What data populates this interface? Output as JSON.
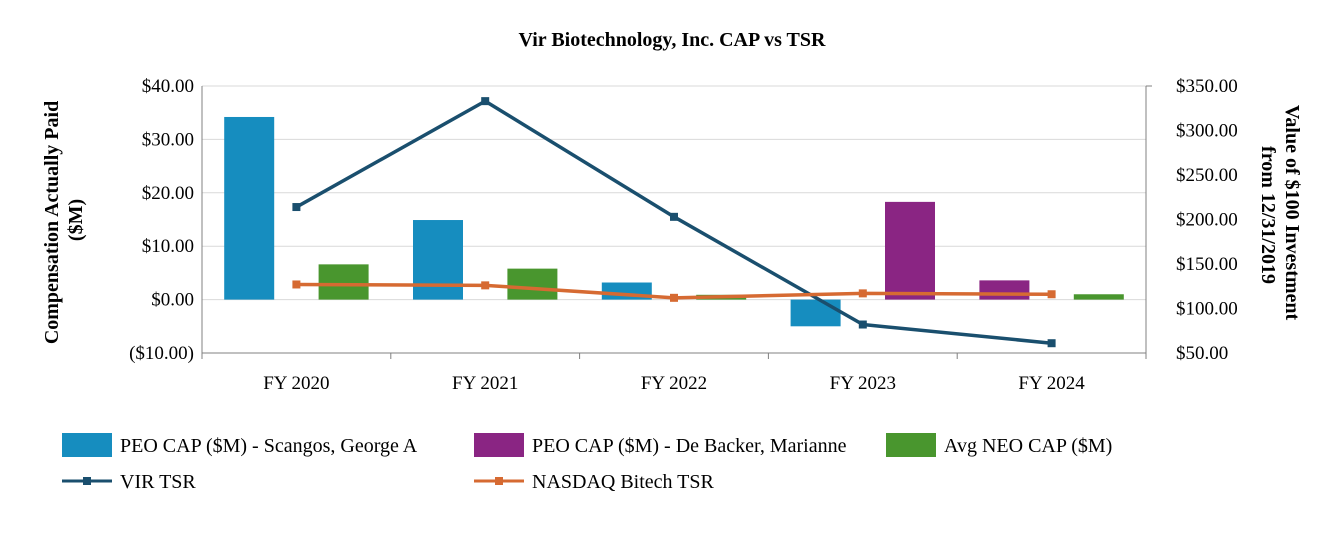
{
  "chart_data": {
    "type": "bar",
    "title": "Vir Biotechnology, Inc. CAP vs TSR",
    "categories": [
      "FY 2020",
      "FY 2021",
      "FY 2022",
      "FY 2023",
      "FY 2024"
    ],
    "y_left": {
      "label_line1": "Compensation Actually Paid",
      "label_line2": "($M)",
      "range": [
        -10,
        40
      ],
      "ticks": [
        -10,
        0,
        10,
        20,
        30,
        40
      ],
      "tick_labels": [
        "($10.00)",
        "$0.00",
        "$10.00",
        "$20.00",
        "$30.00",
        "$40.00"
      ]
    },
    "y_right": {
      "label_line1": "Value of $100 Investment",
      "label_line2": "from 12/31/2019",
      "range": [
        50,
        350
      ],
      "ticks": [
        50,
        100,
        150,
        200,
        250,
        300,
        350
      ],
      "tick_labels": [
        "$50.00",
        "$100.00",
        "$150.00",
        "$200.00",
        "$250.00",
        "$300.00",
        "$350.00"
      ]
    },
    "grid": true,
    "legend_position": "bottom-left",
    "bar_series": [
      {
        "name": "PEO CAP ($M) - Scangos, George A",
        "color": "#168DBF",
        "values": [
          34.2,
          14.9,
          3.2,
          -5.0,
          null
        ]
      },
      {
        "name": "PEO CAP ($M) - De Backer, Marianne",
        "color": "#8A2583",
        "values": [
          null,
          null,
          null,
          18.3,
          3.6
        ]
      },
      {
        "name": "Avg NEO CAP ($M)",
        "color": "#49962E",
        "values": [
          6.6,
          5.8,
          0.9,
          null,
          1.0
        ]
      }
    ],
    "line_series": [
      {
        "name": "VIR TSR",
        "color": "#1A4F6E",
        "values": [
          214,
          333,
          203,
          82,
          61
        ]
      },
      {
        "name": "NASDAQ Bitech TSR",
        "color": "#D66A32",
        "values": [
          127,
          126,
          112,
          117,
          116
        ]
      }
    ]
  }
}
